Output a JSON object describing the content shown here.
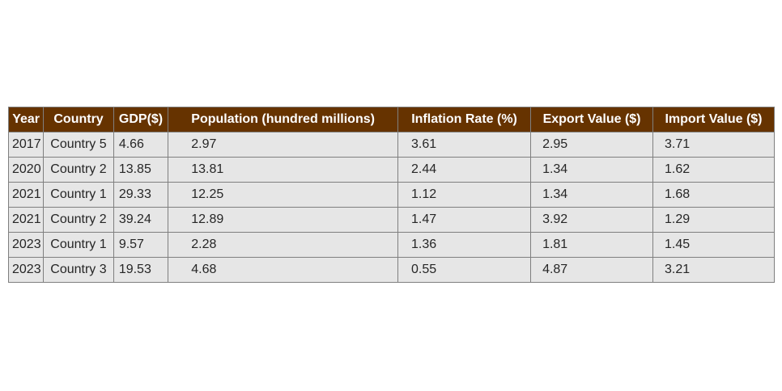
{
  "chart_data": {
    "type": "table",
    "columns": [
      "Year",
      "Country",
      "GDP($)",
      "Population (hundred millions)",
      "Inflation Rate (%)",
      "Export Value ($)",
      "Import Value ($)"
    ],
    "rows": [
      [
        "2017",
        "Country 5",
        "4.66",
        "2.97",
        "3.61",
        "2.95",
        "3.71"
      ],
      [
        "2020",
        "Country 2",
        "13.85",
        "13.81",
        "2.44",
        "1.34",
        "1.62"
      ],
      [
        "2021",
        "Country 1",
        "29.33",
        "12.25",
        "1.12",
        "1.34",
        "1.68"
      ],
      [
        "2021",
        "Country 2",
        "39.24",
        "12.89",
        "1.47",
        "3.92",
        "1.29"
      ],
      [
        "2023",
        "Country 1",
        "9.57",
        "2.28",
        "1.36",
        "1.81",
        "1.45"
      ],
      [
        "2023",
        "Country 3",
        "19.53",
        "4.68",
        "0.55",
        "4.87",
        "3.21"
      ]
    ]
  },
  "colors": {
    "header_background": "#663300",
    "header_text": "#ffffff",
    "cell_background": "#e6e6e6",
    "cell_text": "#262626",
    "border": "#7f7f7f"
  }
}
